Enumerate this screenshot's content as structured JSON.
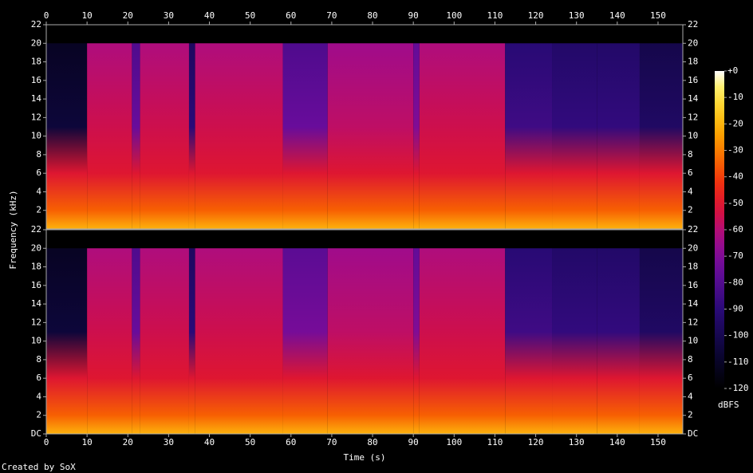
{
  "chart_data": [
    {
      "type": "spectrogram",
      "xlim": [
        0,
        156.07
      ],
      "ylim": [
        0,
        22
      ],
      "xticks": [
        0,
        10,
        20,
        30,
        40,
        50,
        60,
        70,
        80,
        90,
        100,
        110,
        120,
        130,
        140,
        150
      ],
      "yticks": [
        2,
        4,
        6,
        8,
        10,
        12,
        14,
        16,
        18,
        20,
        22
      ],
      "bins": [
        0,
        10,
        21,
        23,
        35,
        36.5,
        58,
        69,
        90,
        91.5,
        112.5,
        124,
        135,
        145.5,
        156.07
      ],
      "levels": [
        -105,
        -55,
        -75,
        -55,
        -90,
        -55,
        -75,
        -58,
        -70,
        -55,
        -85,
        -88,
        -88,
        -95
      ],
      "cutoffs": [
        20,
        20,
        20,
        20,
        20,
        20,
        20,
        20,
        20,
        20,
        20,
        20,
        20,
        20
      ]
    },
    {
      "type": "spectrogram",
      "xlim": [
        0,
        156.07
      ],
      "ylim": [
        0,
        22
      ],
      "xlabel": "Time (s)",
      "ylabel": "Frequency (kHz)",
      "xticks": [
        0,
        10,
        20,
        30,
        40,
        50,
        60,
        70,
        80,
        90,
        100,
        110,
        120,
        130,
        140,
        150
      ],
      "yticks": [
        {
          "value": 0,
          "label": "DC"
        },
        2,
        4,
        6,
        8,
        10,
        12,
        14,
        16,
        18,
        20,
        22
      ],
      "bins": [
        0,
        10,
        21,
        23,
        35,
        36.5,
        58,
        69,
        90,
        91.5,
        112.5,
        124,
        135,
        145.5,
        156.07
      ],
      "levels": [
        -105,
        -55,
        -75,
        -55,
        -90,
        -55,
        -72,
        -58,
        -70,
        -55,
        -85,
        -88,
        -88,
        -95
      ],
      "cutoffs": [
        20,
        20,
        20,
        20,
        20,
        20,
        20,
        20,
        20,
        20,
        20,
        20,
        20,
        20
      ]
    }
  ],
  "colorbar": {
    "label": "dBFS",
    "zlim": [
      -120,
      0
    ],
    "ticks": [
      {
        "value": 0,
        "label": "+0"
      },
      -10,
      -20,
      -30,
      -40,
      -50,
      -60,
      -70,
      -80,
      -90,
      -100,
      -110,
      -120
    ]
  },
  "credit": "Created by SoX"
}
